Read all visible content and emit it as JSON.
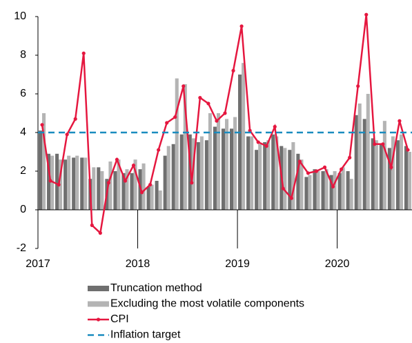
{
  "chart_data": {
    "type": "bar",
    "categories": [
      "2017",
      null,
      null,
      null,
      null,
      null,
      null,
      null,
      null,
      null,
      null,
      null,
      "2018",
      null,
      null,
      null,
      null,
      null,
      null,
      null,
      null,
      null,
      null,
      null,
      "2019",
      null,
      null,
      null,
      null,
      null,
      null,
      null,
      null,
      null,
      null,
      null,
      "2020",
      null,
      null,
      null,
      null,
      null,
      null,
      null,
      null
    ],
    "series": [
      {
        "name": "Truncation method",
        "color": "#6f6f6f",
        "kind": "bar",
        "values": [
          4.1,
          2.9,
          2.9,
          2.6,
          2.7,
          2.7,
          1.6,
          2.2,
          1.6,
          2.0,
          1.9,
          1.9,
          2.1,
          1.2,
          1.5,
          2.8,
          3.4,
          3.9,
          3.9,
          3.5,
          3.6,
          4.3,
          4.2,
          4.2,
          7.0,
          3.8,
          3.1,
          3.5,
          3.9,
          3.3,
          3.1,
          2.9,
          1.7,
          2.1,
          2.0,
          1.8,
          1.9,
          2.0,
          4.9,
          4.7,
          3.7,
          3.4,
          3.2,
          3.6,
          3.3
        ]
      },
      {
        "name": "Excluding the most volatile components",
        "color": "#b4b4b4",
        "kind": "bar",
        "values": [
          5.0,
          2.8,
          2.6,
          2.8,
          2.8,
          2.7,
          2.2,
          2.0,
          2.5,
          2.6,
          2.1,
          2.6,
          2.4,
          1.3,
          1.0,
          3.3,
          6.8,
          6.5,
          3.7,
          3.8,
          5.0,
          5.0,
          4.7,
          4.8,
          7.6,
          3.8,
          3.4,
          3.6,
          3.8,
          3.2,
          3.5,
          2.6,
          1.8,
          2.0,
          2.1,
          2.0,
          2.2,
          1.6,
          5.5,
          6.0,
          3.6,
          4.6,
          3.8,
          3.9,
          3.0
        ]
      },
      {
        "name": "CPI",
        "color": "#e5173f",
        "kind": "line",
        "values": [
          4.4,
          1.5,
          1.3,
          3.9,
          4.7,
          8.1,
          -0.8,
          -1.2,
          1.4,
          2.6,
          1.5,
          2.3,
          0.9,
          1.3,
          3.1,
          4.5,
          4.8,
          6.4,
          1.4,
          5.8,
          5.5,
          4.6,
          5.0,
          7.2,
          9.5,
          4.1,
          3.5,
          3.3,
          4.3,
          1.1,
          0.6,
          2.5,
          1.9,
          2.0,
          2.2,
          1.2,
          2.1,
          2.7,
          6.4,
          10.1,
          3.4,
          3.4,
          2.2,
          4.6,
          3.1
        ]
      },
      {
        "name": "Inflation target",
        "color": "#1a8cbf",
        "kind": "dashed",
        "values": [
          4,
          4,
          4,
          4,
          4,
          4,
          4,
          4,
          4,
          4,
          4,
          4,
          4,
          4,
          4,
          4,
          4,
          4,
          4,
          4,
          4,
          4,
          4,
          4,
          4,
          4,
          4,
          4,
          4,
          4,
          4,
          4,
          4,
          4,
          4,
          4,
          4,
          4,
          4,
          4,
          4,
          4,
          4,
          4,
          4
        ]
      }
    ],
    "ylim": [
      -2,
      10
    ],
    "yticks": [
      -2,
      0,
      2,
      4,
      6,
      8,
      10
    ],
    "grid": false
  }
}
